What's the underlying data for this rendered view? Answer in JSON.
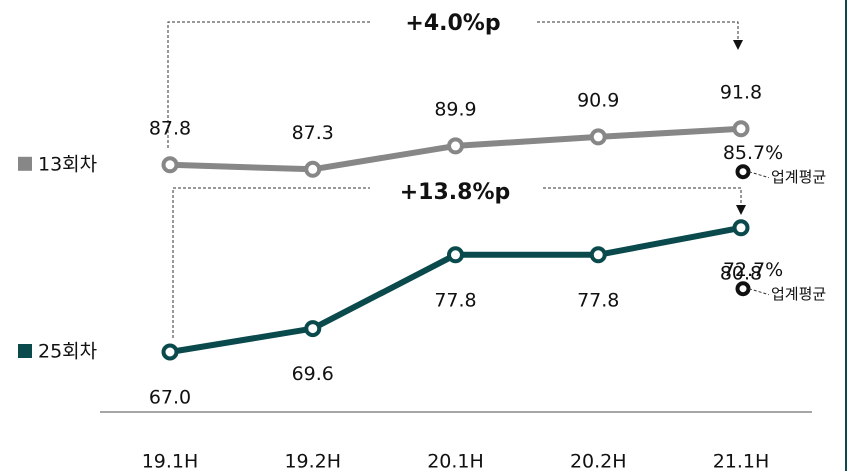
{
  "chart_data": {
    "type": "line",
    "categories": [
      "19.1H",
      "19.2H",
      "20.1H",
      "20.2H",
      "21.1H"
    ],
    "series": [
      {
        "name": "13회차",
        "color": "#878787",
        "values": [
          87.8,
          87.3,
          89.9,
          90.9,
          91.8
        ],
        "value_labels": [
          "87.8",
          "87.3",
          "89.9",
          "90.9",
          "91.8"
        ],
        "benchmark": {
          "name": "업계평균",
          "value": 85.7,
          "value_label": "85.7%"
        }
      },
      {
        "name": "25회차",
        "color": "#0b4a4c",
        "values": [
          67.0,
          69.6,
          77.8,
          77.8,
          80.8
        ],
        "value_labels": [
          "67.0",
          "69.6",
          "77.8",
          "77.8",
          "80.8"
        ],
        "benchmark": {
          "name": "업계평균",
          "value": 72.7,
          "value_label": "72.7%"
        }
      }
    ],
    "annotations": [
      "+4.0%p",
      "+13.8%p"
    ],
    "ylim": [
      60,
      105
    ]
  }
}
